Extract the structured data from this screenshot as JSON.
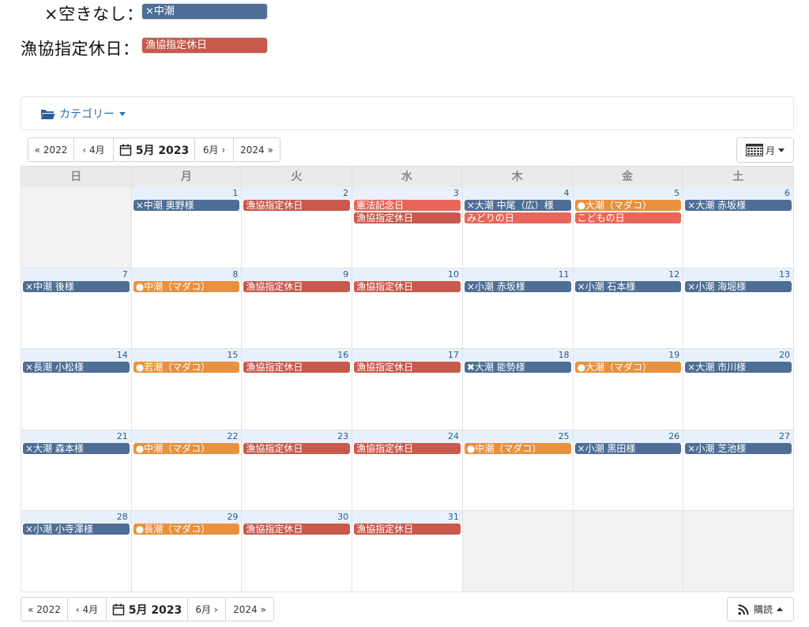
{
  "legend": [
    {
      "label": "×空きなし：",
      "swatch_text": "×中潮",
      "color": "#4e6e95"
    },
    {
      "label": "漁協指定休日：",
      "swatch_text": "漁協指定休日",
      "color": "#c8594c"
    }
  ],
  "colors": {
    "booked": "#4e6e95",
    "madako": "#e8913f",
    "closed": "#c8594c",
    "holiday": "#e8675a"
  },
  "category": {
    "label": "カテゴリー",
    "icon": "folder-open-icon"
  },
  "nav": {
    "prev_year": "« 2022",
    "prev_month": "‹ 4月",
    "current": "5月 2023",
    "next_month": "6月 ›",
    "next_year": "2024 »"
  },
  "view": {
    "label": "月",
    "icon": "calendar-grid-icon"
  },
  "subscribe": {
    "label": "購読",
    "icon": "rss-icon"
  },
  "weekdays": [
    "日",
    "月",
    "火",
    "水",
    "木",
    "金",
    "土"
  ],
  "weeks": [
    [
      null,
      {
        "day": "1",
        "events": [
          {
            "text": "×中潮 奥野様",
            "type": "booked"
          }
        ]
      },
      {
        "day": "2",
        "events": [
          {
            "text": "漁協指定休日",
            "type": "closed"
          }
        ]
      },
      {
        "day": "3",
        "events": [
          {
            "text": "憲法記念日",
            "type": "holiday"
          },
          {
            "text": "漁協指定休日",
            "type": "closed"
          }
        ]
      },
      {
        "day": "4",
        "events": [
          {
            "text": "×大潮 中尾（広）様",
            "type": "booked"
          },
          {
            "text": "みどりの日",
            "type": "holiday"
          }
        ]
      },
      {
        "day": "5",
        "events": [
          {
            "text": "●大潮（マダコ）",
            "type": "madako"
          },
          {
            "text": "こどもの日",
            "type": "holiday"
          }
        ]
      },
      {
        "day": "6",
        "events": [
          {
            "text": "×大潮 赤坂様",
            "type": "booked"
          }
        ]
      }
    ],
    [
      {
        "day": "7",
        "events": [
          {
            "text": "×中潮 後様",
            "type": "booked"
          }
        ]
      },
      {
        "day": "8",
        "events": [
          {
            "text": "●中潮（マダコ）",
            "type": "madako"
          }
        ]
      },
      {
        "day": "9",
        "events": [
          {
            "text": "漁協指定休日",
            "type": "closed"
          }
        ]
      },
      {
        "day": "10",
        "events": [
          {
            "text": "漁協指定休日",
            "type": "closed"
          }
        ]
      },
      {
        "day": "11",
        "events": [
          {
            "text": "×小潮 赤坂様",
            "type": "booked"
          }
        ]
      },
      {
        "day": "12",
        "events": [
          {
            "text": "×小潮 石本様",
            "type": "booked"
          }
        ]
      },
      {
        "day": "13",
        "events": [
          {
            "text": "×小潮 海堀様",
            "type": "booked"
          }
        ]
      }
    ],
    [
      {
        "day": "14",
        "events": [
          {
            "text": "×長潮 小松様",
            "type": "booked"
          }
        ]
      },
      {
        "day": "15",
        "events": [
          {
            "text": "●若潮（マダコ）",
            "type": "madako"
          }
        ]
      },
      {
        "day": "16",
        "events": [
          {
            "text": "漁協指定休日",
            "type": "closed"
          }
        ]
      },
      {
        "day": "17",
        "events": [
          {
            "text": "漁協指定休日",
            "type": "closed"
          }
        ]
      },
      {
        "day": "18",
        "events": [
          {
            "text": "✖大潮 能勢様",
            "type": "booked"
          }
        ]
      },
      {
        "day": "19",
        "events": [
          {
            "text": "●大潮（マダコ）",
            "type": "madako"
          }
        ]
      },
      {
        "day": "20",
        "events": [
          {
            "text": "×大潮 市川様",
            "type": "booked"
          }
        ]
      }
    ],
    [
      {
        "day": "21",
        "events": [
          {
            "text": "×大潮 森本様",
            "type": "booked"
          }
        ]
      },
      {
        "day": "22",
        "events": [
          {
            "text": "●中潮（マダコ）",
            "type": "madako"
          }
        ]
      },
      {
        "day": "23",
        "events": [
          {
            "text": "漁協指定休日",
            "type": "closed"
          }
        ]
      },
      {
        "day": "24",
        "events": [
          {
            "text": "漁協指定休日",
            "type": "closed"
          }
        ]
      },
      {
        "day": "25",
        "events": [
          {
            "text": "●中潮（マダコ）",
            "type": "madako"
          }
        ]
      },
      {
        "day": "26",
        "events": [
          {
            "text": "×小潮 黒田様",
            "type": "booked"
          }
        ]
      },
      {
        "day": "27",
        "events": [
          {
            "text": "×小潮 芝池様",
            "type": "booked"
          }
        ]
      }
    ],
    [
      {
        "day": "28",
        "events": [
          {
            "text": "×小潮 小寺澤様",
            "type": "booked"
          }
        ]
      },
      {
        "day": "29",
        "events": [
          {
            "text": "●長潮（マダコ）",
            "type": "madako"
          }
        ]
      },
      {
        "day": "30",
        "events": [
          {
            "text": "漁協指定休日",
            "type": "closed"
          }
        ]
      },
      {
        "day": "31",
        "events": [
          {
            "text": "漁協指定休日",
            "type": "closed"
          }
        ]
      },
      null,
      null,
      null
    ]
  ]
}
